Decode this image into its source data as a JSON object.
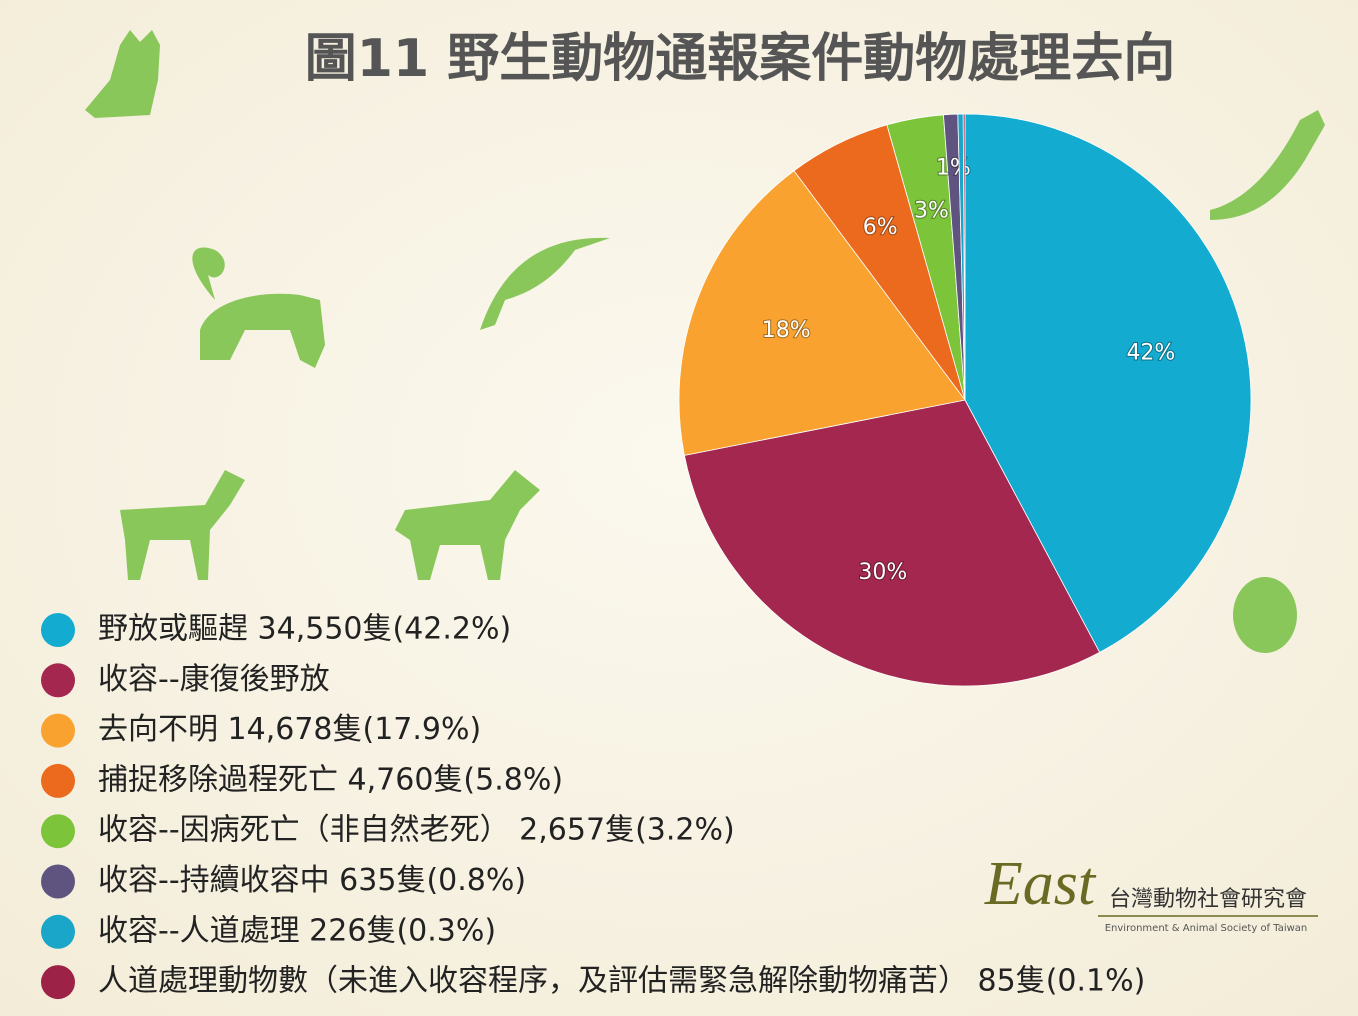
{
  "chart_data": {
    "type": "pie",
    "title": "圖11  野生動物通報案件動物處理去向",
    "categories": [
      "野放或驅趕 34,550隻(42.2%)",
      "收容--康復後野放",
      "去向不明 14,678隻(17.9%)",
      "捕捉移除過程死亡  4,760隻(5.8%)",
      "收容--因病死亡（非自然老死） 2,657隻(3.2%)",
      "收容--持續收容中  635隻(0.8%)",
      "收容--人道處理 226隻(0.3%)",
      "人道處理動物數（未進入收容程序，及評估需緊急解除動物痛苦） 85隻(0.1%)"
    ],
    "values": [
      42.2,
      29.7,
      17.9,
      5.8,
      3.2,
      0.8,
      0.3,
      0.1
    ],
    "value_labels": [
      "42%",
      "30%",
      "18%",
      "6%",
      "3%",
      "1%",
      null,
      null
    ],
    "colors": [
      "#14abd0",
      "#a3274f",
      "#f9a22f",
      "#ec6a1e",
      "#7cc43a",
      "#5f5480",
      "#1aa6c9",
      "#9c2347"
    ]
  },
  "logo": {
    "mark": "East",
    "name": "台灣動物社會研究會",
    "subtitle": "Environment & Animal Society of Taiwan"
  }
}
